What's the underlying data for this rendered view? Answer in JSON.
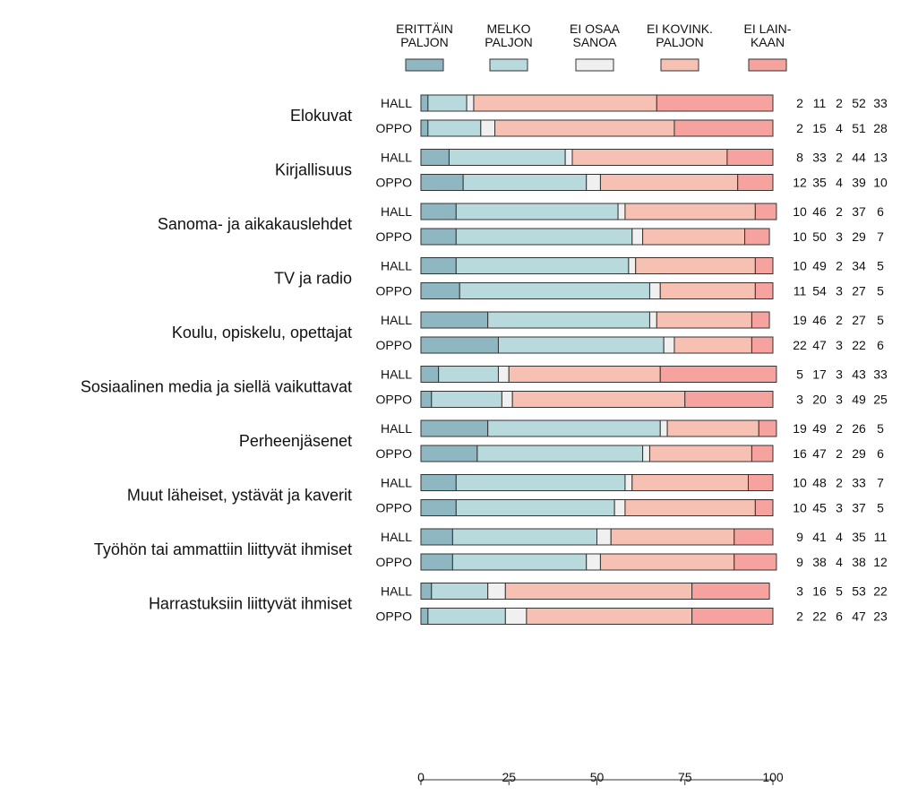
{
  "chart_data": {
    "type": "bar",
    "orientation": "horizontal",
    "stacked": true,
    "series": [
      {
        "name_lines": [
          "ERITTÄIN",
          "PALJON"
        ],
        "color": "#8fb7c1"
      },
      {
        "name_lines": [
          "MELKO",
          "PALJON"
        ],
        "color": "#b9dadd"
      },
      {
        "name_lines": [
          "EI OSAA",
          "SANOA"
        ],
        "color": "#f0f0f0"
      },
      {
        "name_lines": [
          "EI KOVINK.",
          "PALJON"
        ],
        "color": "#f6c0b2"
      },
      {
        "name_lines": [
          "EI LAIN-",
          "KAAN"
        ],
        "color": "#f6a29e"
      }
    ],
    "categories": [
      {
        "label": "Elokuvat",
        "groups": [
          {
            "label": "HALL",
            "values": [
              2,
              11,
              2,
              52,
              33
            ]
          },
          {
            "label": "OPPO",
            "values": [
              2,
              15,
              4,
              51,
              28
            ]
          }
        ]
      },
      {
        "label": "Kirjallisuus",
        "groups": [
          {
            "label": "HALL",
            "values": [
              8,
              33,
              2,
              44,
              13
            ]
          },
          {
            "label": "OPPO",
            "values": [
              12,
              35,
              4,
              39,
              10
            ]
          }
        ]
      },
      {
        "label": "Sanoma- ja aikakauslehdet",
        "groups": [
          {
            "label": "HALL",
            "values": [
              10,
              46,
              2,
              37,
              6
            ]
          },
          {
            "label": "OPPO",
            "values": [
              10,
              50,
              3,
              29,
              7
            ]
          }
        ]
      },
      {
        "label": "TV ja radio",
        "groups": [
          {
            "label": "HALL",
            "values": [
              10,
              49,
              2,
              34,
              5
            ]
          },
          {
            "label": "OPPO",
            "values": [
              11,
              54,
              3,
              27,
              5
            ]
          }
        ]
      },
      {
        "label": "Koulu, opiskelu, opettajat",
        "groups": [
          {
            "label": "HALL",
            "values": [
              19,
              46,
              2,
              27,
              5
            ]
          },
          {
            "label": "OPPO",
            "values": [
              22,
              47,
              3,
              22,
              6
            ]
          }
        ]
      },
      {
        "label": "Sosiaalinen media ja siellä vaikuttavat",
        "groups": [
          {
            "label": "HALL",
            "values": [
              5,
              17,
              3,
              43,
              33
            ]
          },
          {
            "label": "OPPO",
            "values": [
              3,
              20,
              3,
              49,
              25
            ]
          }
        ]
      },
      {
        "label": "Perheenjäsenet",
        "groups": [
          {
            "label": "HALL",
            "values": [
              19,
              49,
              2,
              26,
              5
            ]
          },
          {
            "label": "OPPO",
            "values": [
              16,
              47,
              2,
              29,
              6
            ]
          }
        ]
      },
      {
        "label": "Muut läheiset, ystävät ja kaverit",
        "groups": [
          {
            "label": "HALL",
            "values": [
              10,
              48,
              2,
              33,
              7
            ]
          },
          {
            "label": "OPPO",
            "values": [
              10,
              45,
              3,
              37,
              5
            ]
          }
        ]
      },
      {
        "label": "Työhön tai ammattiin liittyvät ihmiset",
        "groups": [
          {
            "label": "HALL",
            "values": [
              9,
              41,
              4,
              35,
              11
            ]
          },
          {
            "label": "OPPO",
            "values": [
              9,
              38,
              4,
              38,
              12
            ]
          }
        ]
      },
      {
        "label": "Harrastuksiin liittyvät ihmiset",
        "groups": [
          {
            "label": "HALL",
            "values": [
              3,
              16,
              5,
              53,
              22
            ]
          },
          {
            "label": "OPPO",
            "values": [
              2,
              22,
              6,
              47,
              23
            ]
          }
        ]
      }
    ],
    "xlim": [
      0,
      100
    ],
    "x_ticks": [
      0,
      25,
      50,
      75,
      100
    ],
    "legend_placement": "top",
    "grid": false
  }
}
